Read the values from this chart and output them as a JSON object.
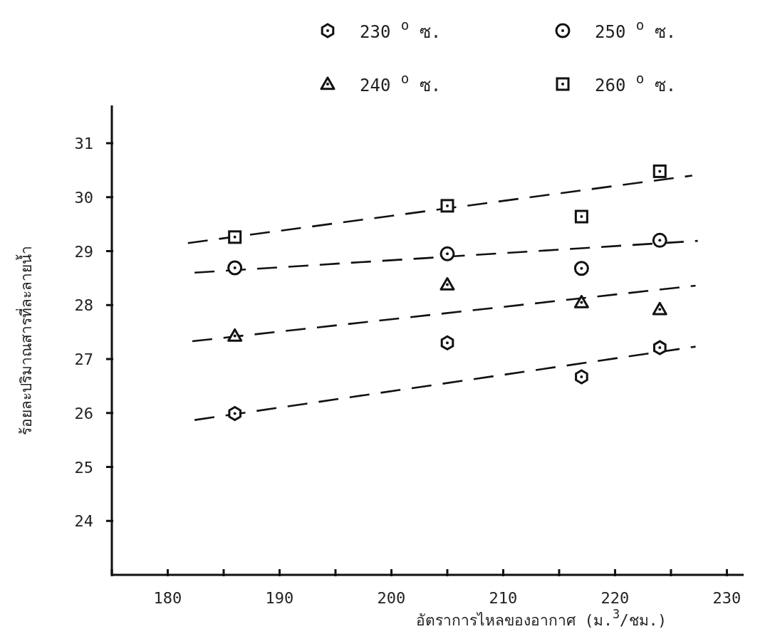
{
  "chart_data": {
    "type": "scatter",
    "xlabel": "อัตราการไหลของอากาศ (ม.$^{3}$/ชม.)",
    "ylabel": "ร้อยละปริมาณสารที่ละลายน้ำ",
    "xlim": [
      175,
      231.5
    ],
    "ylim": [
      23,
      31.7
    ],
    "xticks": [
      {
        "value": 175,
        "label": null
      },
      180,
      {
        "value": 185,
        "label": null
      },
      190,
      {
        "value": 195,
        "label": null
      },
      200,
      {
        "value": 205,
        "label": null
      },
      210,
      {
        "value": 215,
        "label": null
      },
      220,
      {
        "value": 225,
        "label": null
      },
      230
    ],
    "yticks": [
      24,
      25,
      26,
      27,
      28,
      29,
      30,
      31
    ],
    "grid": false,
    "legend": "top",
    "series": [
      {
        "name": "230 $^{o}$ ซ.",
        "color": "#111111",
        "x": [
          186,
          205,
          217,
          224
        ],
        "values": [
          25.99,
          27.3,
          26.67,
          27.21
        ]
      },
      {
        "name": "240 $^{o}$ ซ.",
        "color": "#111111",
        "marker": "triangle",
        "x": [
          186,
          205,
          217,
          224
        ],
        "values": [
          27.43,
          28.38,
          28.05,
          27.92
        ]
      },
      {
        "name": "250 $^{o}$ ซ.",
        "color": "#111111",
        "marker": "circle",
        "x": [
          186,
          205,
          217,
          224
        ],
        "values": [
          28.69,
          28.95,
          28.68,
          29.2
        ]
      },
      {
        "name": "260 $^{o}$ ซ.",
        "color": "#111111",
        "marker": "square",
        "x": [
          186,
          205,
          217,
          224
        ],
        "values": [
          29.26,
          29.84,
          29.64,
          30.48
        ]
      },
      {
        "type": "line",
        "color": "#111111",
        "line_style": "dashed",
        "marker": "none",
        "x": [
          182.4,
          227.2
        ],
        "values": [
          25.87,
          27.23
        ]
      },
      {
        "type": "line",
        "color": "#111111",
        "line_style": "dashed",
        "marker": "none",
        "x": [
          182.2,
          227.2
        ],
        "values": [
          27.33,
          28.36
        ]
      },
      {
        "type": "line",
        "color": "#111111",
        "line_style": "dashed",
        "marker": "none",
        "x": [
          182.4,
          227.4
        ],
        "values": [
          28.6,
          29.19
        ]
      },
      {
        "type": "line",
        "color": "#111111",
        "line_style": "dashed",
        "marker": "none",
        "x": [
          181.8,
          226.9
        ],
        "values": [
          29.15,
          30.4
        ]
      }
    ]
  }
}
